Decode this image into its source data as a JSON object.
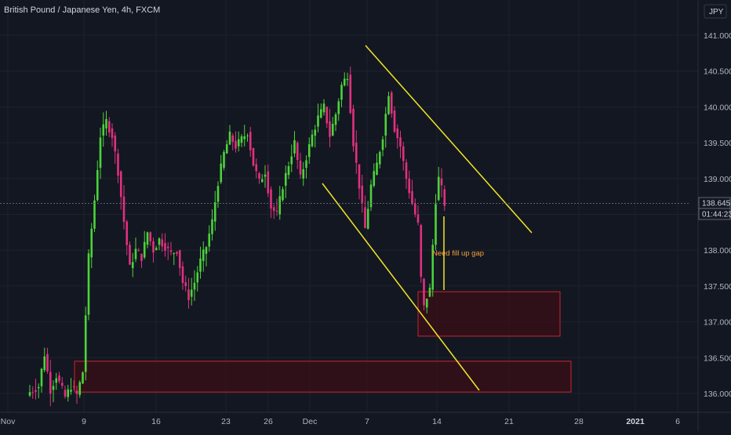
{
  "header": {
    "title": "British Pound / Japanese Yen, 4h, FXCM",
    "currency": "JPY"
  },
  "price_label": {
    "value": "138.645",
    "timer": "01:44:23"
  },
  "annotation": {
    "text": "Need fill up gap"
  },
  "colors": {
    "background": "#131722",
    "up": "#4cd33a",
    "down": "#e0317e",
    "trendline": "#f2e626",
    "zone_fill": "#3a0f17",
    "zone_border": "#c8242e",
    "annotation": "#f7a23b",
    "grid": "#1e222d"
  },
  "chart_data": {
    "type": "candlestick",
    "title": "British Pound / Japanese Yen, 4h, FXCM",
    "ylabel": "JPY",
    "ylim": [
      135.85,
      141.3
    ],
    "y_ticks": [
      "141.000",
      "140.500",
      "140.000",
      "139.500",
      "139.000",
      "138.500",
      "138.000",
      "137.500",
      "137.000",
      "136.500",
      "136.000"
    ],
    "y_tick_values": [
      141.0,
      140.5,
      140.0,
      139.5,
      139.0,
      138.5,
      138.0,
      137.5,
      137.0,
      136.5,
      136.0
    ],
    "x_ticks": [
      {
        "label": "Nov",
        "bold": false
      },
      {
        "label": "9",
        "bold": false
      },
      {
        "label": "16",
        "bold": false
      },
      {
        "label": "23",
        "bold": false
      },
      {
        "label": "26",
        "bold": false
      },
      {
        "label": "Dec",
        "bold": false
      },
      {
        "label": "7",
        "bold": false
      },
      {
        "label": "14",
        "bold": false
      },
      {
        "label": "21",
        "bold": false
      },
      {
        "label": "28",
        "bold": false
      },
      {
        "label": "2021",
        "bold": true
      },
      {
        "label": "6",
        "bold": false
      }
    ],
    "last_price": 138.645,
    "grid": true,
    "anchors": [
      [
        0,
        136.02
      ],
      [
        3,
        136.1
      ],
      [
        5,
        136.55
      ],
      [
        7,
        136.05
      ],
      [
        9,
        136.25
      ],
      [
        12,
        135.95
      ],
      [
        14,
        136.1
      ],
      [
        16,
        135.98
      ],
      [
        18,
        136.3
      ],
      [
        20,
        137.9
      ],
      [
        22,
        138.7
      ],
      [
        24,
        139.6
      ],
      [
        26,
        139.8
      ],
      [
        28,
        139.6
      ],
      [
        30,
        139.1
      ],
      [
        32,
        138.4
      ],
      [
        34,
        137.75
      ],
      [
        36,
        138.0
      ],
      [
        38,
        137.9
      ],
      [
        40,
        138.25
      ],
      [
        42,
        138.0
      ],
      [
        44,
        138.15
      ],
      [
        46,
        138.05
      ],
      [
        48,
        137.95
      ],
      [
        50,
        138.0
      ],
      [
        52,
        137.55
      ],
      [
        54,
        137.35
      ],
      [
        56,
        137.55
      ],
      [
        58,
        137.85
      ],
      [
        60,
        138.05
      ],
      [
        62,
        138.4
      ],
      [
        64,
        138.95
      ],
      [
        66,
        139.35
      ],
      [
        68,
        139.6
      ],
      [
        70,
        139.45
      ],
      [
        72,
        139.55
      ],
      [
        74,
        139.65
      ],
      [
        76,
        139.2
      ],
      [
        78,
        138.95
      ],
      [
        80,
        139.1
      ],
      [
        82,
        138.6
      ],
      [
        84,
        138.5
      ],
      [
        86,
        138.9
      ],
      [
        88,
        139.2
      ],
      [
        90,
        139.5
      ],
      [
        92,
        139.0
      ],
      [
        94,
        139.3
      ],
      [
        96,
        139.6
      ],
      [
        98,
        139.85
      ],
      [
        100,
        140.0
      ],
      [
        102,
        139.6
      ],
      [
        104,
        139.9
      ],
      [
        106,
        140.3
      ],
      [
        108,
        140.45
      ],
      [
        110,
        139.5
      ],
      [
        112,
        138.9
      ],
      [
        114,
        138.3
      ],
      [
        116,
        138.9
      ],
      [
        118,
        139.2
      ],
      [
        120,
        139.6
      ],
      [
        122,
        140.2
      ],
      [
        124,
        139.7
      ],
      [
        126,
        139.45
      ],
      [
        128,
        139.0
      ],
      [
        130,
        138.65
      ],
      [
        132,
        138.35
      ],
      [
        133,
        137.6
      ],
      [
        134,
        137.2
      ],
      [
        135,
        137.35
      ],
      [
        136,
        137.45
      ],
      [
        138,
        138.7
      ],
      [
        139,
        139.0
      ],
      [
        140,
        138.85
      ],
      [
        141,
        138.65
      ]
    ],
    "gaps": [
      {
        "name": "lower-gap-zone",
        "candle_from": 18,
        "candle_to": 137,
        "price_top": 136.45,
        "price_bottom": 136.02
      },
      {
        "name": "upper-gap-zone",
        "candle_from": 134,
        "candle_to": 137,
        "price_top": 137.42,
        "price_bottom": 136.8
      }
    ]
  }
}
